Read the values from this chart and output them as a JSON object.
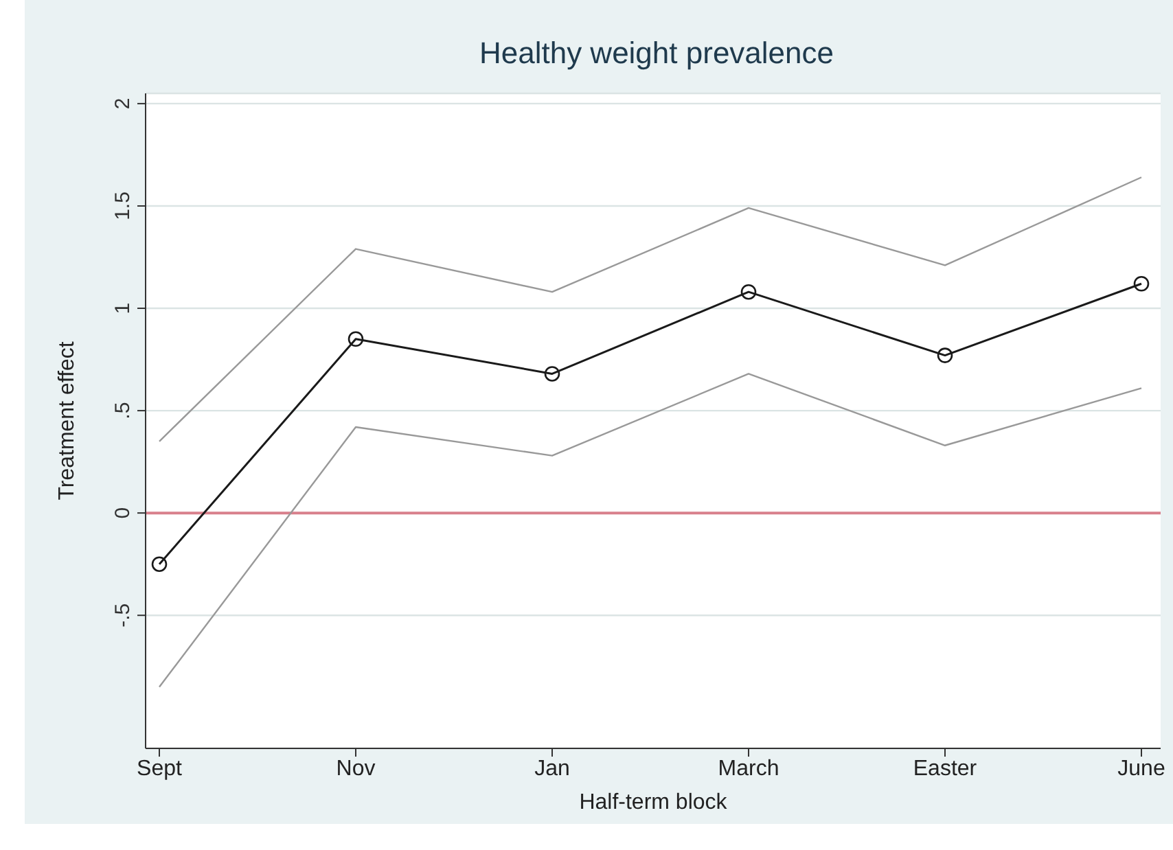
{
  "chart_data": {
    "type": "line",
    "title": "Healthy weight prevalence",
    "xlabel": "Half-term block",
    "ylabel": "Treatment effect",
    "categories": [
      "Sept",
      "Nov",
      "Jan",
      "March",
      "Easter",
      "June"
    ],
    "series": [
      {
        "color": "#999999",
        "marker": "none",
        "values": [
          0.35,
          1.29,
          1.08,
          1.49,
          1.21,
          1.64
        ]
      },
      {
        "color": "#1a1a1a",
        "values": [
          -0.25,
          0.85,
          0.68,
          1.08,
          0.77,
          1.12
        ]
      },
      {
        "color": "#999999",
        "marker": "none",
        "values": [
          -0.85,
          0.42,
          0.28,
          0.68,
          0.33,
          0.61
        ]
      }
    ],
    "ylim": [
      -1.15,
      2.05
    ],
    "yticks": [
      {
        "value": -0.5,
        "label": "-.5"
      },
      0,
      {
        "value": 0.5,
        "label": ".5"
      },
      1,
      1.5,
      2
    ],
    "ref_lines": [
      {
        "axis": "y",
        "value": 0,
        "color": "#d9808c"
      }
    ],
    "grid": "y",
    "marker": "circle",
    "line_style": "solid"
  }
}
